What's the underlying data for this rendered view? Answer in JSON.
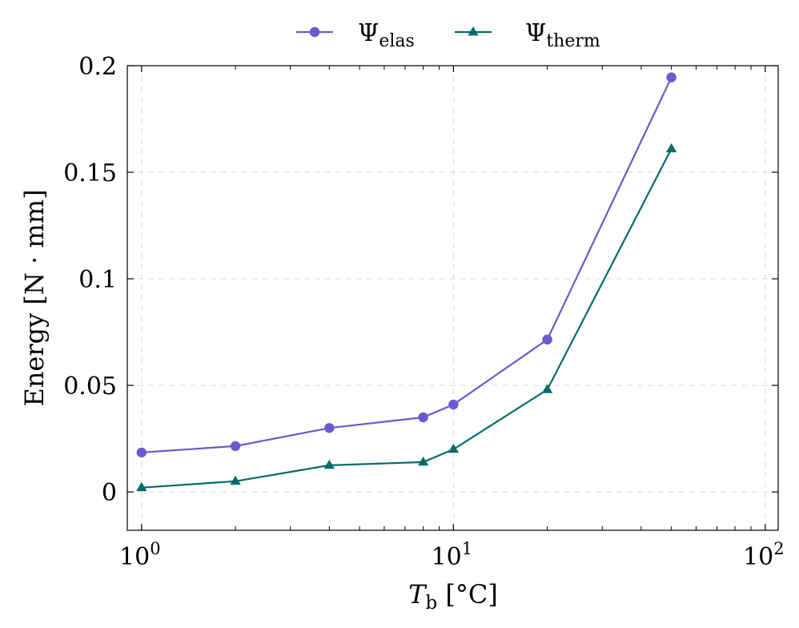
{
  "chart_data": {
    "type": "line",
    "xscale": "log",
    "xlim": [
      0.9,
      110
    ],
    "ylim": [
      -0.018,
      0.2
    ],
    "x_ticks": [
      1,
      10,
      100
    ],
    "x_tick_labels": [
      {
        "base": "10",
        "exp": "0"
      },
      {
        "base": "10",
        "exp": "1"
      },
      {
        "base": "10",
        "exp": "2"
      }
    ],
    "y_ticks": [
      0,
      0.05,
      0.1,
      0.15,
      0.2
    ],
    "y_tick_labels": [
      "0",
      "0.05",
      "0.1",
      "0.15",
      "0.2"
    ],
    "xlabel": {
      "symbol": "T",
      "sub": "b",
      "unit": "[°C]"
    },
    "ylabel": "Energy [N · mm]",
    "grid": true,
    "legend_position": "top-center",
    "x": [
      1,
      2,
      4,
      8,
      10,
      20,
      50
    ],
    "series": [
      {
        "name": {
          "symbol": "Ψ",
          "sub": "elas"
        },
        "color": "#6a5acd",
        "marker": "circle",
        "values": [
          0.0185,
          0.0215,
          0.03,
          0.035,
          0.041,
          0.0715,
          0.1945
        ]
      },
      {
        "name": {
          "symbol": "Ψ",
          "sub": "therm"
        },
        "color": "#006d6a",
        "marker": "triangle",
        "values": [
          0.002,
          0.005,
          0.0125,
          0.014,
          0.02,
          0.048,
          0.161
        ]
      }
    ]
  }
}
